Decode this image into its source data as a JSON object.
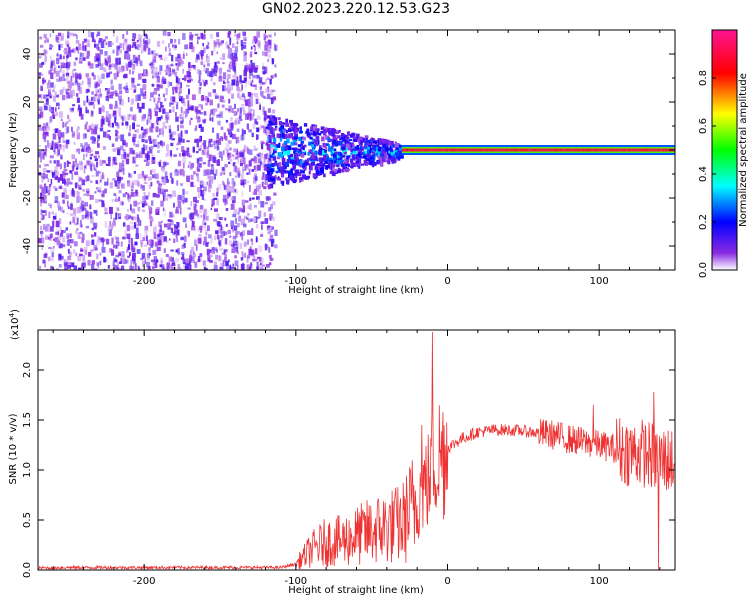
{
  "figure": {
    "title": "GN02.2023.220.12.53.G23"
  },
  "chart_data": [
    {
      "type": "heatmap",
      "title": "GN02.2023.220.12.53.G23",
      "xlabel": "Height of straight line (km)",
      "ylabel": "Frequency (Hz)",
      "xlim": [
        -270,
        150
      ],
      "ylim": [
        -50,
        50
      ],
      "x_ticks": [
        -200,
        -100,
        0,
        100
      ],
      "y_ticks": [
        -40,
        -20,
        0,
        20,
        40
      ],
      "colorbar": {
        "label": "Normalized spectral amplitude",
        "range": [
          0.0,
          1.0
        ],
        "ticks": [
          0.0,
          0.2,
          0.4,
          0.6,
          0.8
        ],
        "colors": [
          "#ffffff",
          "#8a2be2",
          "#0000ff",
          "#00ffff",
          "#00ff00",
          "#ffff00",
          "#ff0000",
          "#ff1493"
        ]
      },
      "regions": [
        {
          "x_range": [
            -270,
            -120
          ],
          "y_range": [
            -50,
            50
          ],
          "amplitude_range": [
            0.0,
            0.12
          ],
          "description": "noise"
        },
        {
          "x_range": [
            -120,
            -30
          ],
          "y_range": [
            -12,
            12
          ],
          "amplitude_range": [
            0.05,
            0.4
          ],
          "description": "weak signal band"
        },
        {
          "x_range": [
            -30,
            150
          ],
          "y_range": [
            -1,
            1
          ],
          "amplitude_range": [
            0.8,
            1.0
          ],
          "description": "strong signal near 0 Hz"
        }
      ]
    },
    {
      "type": "line",
      "xlabel": "Height of straight line (km)",
      "ylabel": "SNR (10 * v/v)",
      "y_scale_label": "(x10",
      "y_scale_exponent": "4",
      "xlim": [
        -270,
        150
      ],
      "ylim": [
        0,
        24000
      ],
      "x_ticks": [
        -200,
        -100,
        0,
        100
      ],
      "y_ticks": [
        0.0,
        0.5,
        1.0,
        1.5,
        2.0
      ],
      "color": "#ee3333",
      "series": [
        {
          "x": [
            -270,
            -250,
            -200,
            -150,
            -110,
            -100,
            -90,
            -80,
            -70,
            -60,
            -50,
            -40,
            -30,
            -20,
            -15,
            -12,
            -10,
            -5,
            0,
            10,
            20,
            30,
            40,
            50,
            60,
            70,
            80,
            90,
            100,
            110,
            120,
            130,
            140,
            150
          ],
          "y": [
            200,
            250,
            250,
            250,
            250,
            600,
            2000,
            2800,
            2900,
            3400,
            3900,
            4300,
            4600,
            7000,
            8500,
            9000,
            10500,
            11500,
            12200,
            13200,
            13800,
            14000,
            14000,
            13900,
            13700,
            13500,
            13100,
            12800,
            12500,
            12200,
            11800,
            11700,
            11000,
            11000
          ]
        }
      ],
      "spikes": [
        {
          "x": -10,
          "y": 23800
        },
        {
          "x": -17,
          "y": 14500
        },
        {
          "x": 96,
          "y": 16500
        },
        {
          "x": 136,
          "y": 17800
        },
        {
          "x": 139,
          "y": 0
        }
      ]
    }
  ]
}
